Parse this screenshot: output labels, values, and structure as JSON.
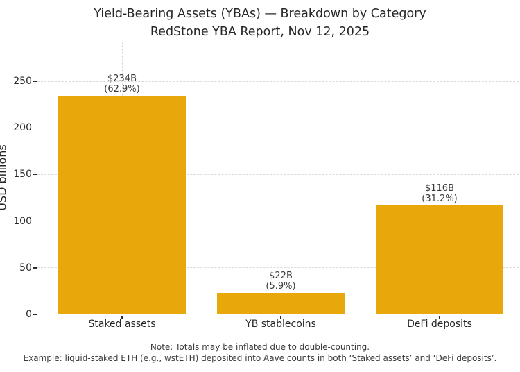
{
  "chart_data": {
    "type": "bar",
    "title": "Yield-Bearing Assets (YBAs) — Breakdown by Category",
    "subtitle": "RedStone YBA Report, Nov 12, 2025",
    "categories": [
      "Staked assets",
      "YB stablecoins",
      "DeFi deposits"
    ],
    "values": [
      234,
      22,
      116
    ],
    "value_labels": [
      "$234B",
      "$22B",
      "$116B"
    ],
    "pct_labels": [
      "(62.9%)",
      "(5.9%)",
      "(31.2%)"
    ],
    "ylabel": "USD billions",
    "yticks": [
      0,
      50,
      100,
      150,
      200,
      250
    ],
    "ylim": [
      0,
      292.5
    ],
    "bar_color": "#E8A70B",
    "spine_color": "#2b2b2b",
    "grid": {
      "style": "dashed",
      "color": "#d9d9d9",
      "horizontal": true,
      "vertical": true
    },
    "legend": "none",
    "note_line1": "Note: Totals may be inflated due to double-counting.",
    "note_line2": "Example: liquid-staked ETH (e.g., wstETH) deposited into Aave counts in both ‘Staked assets’ and ‘DeFi deposits’."
  }
}
